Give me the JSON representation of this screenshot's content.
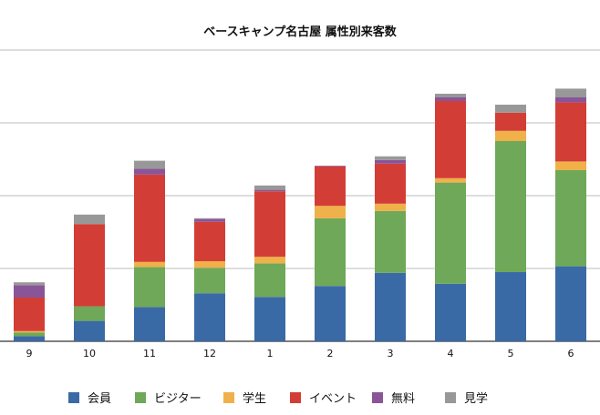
{
  "chart_data": {
    "type": "bar",
    "stacked": true,
    "title": "ベースキャンプ名古屋 属性別来客数",
    "xlabel": "",
    "ylabel": "",
    "categories": [
      "9",
      "10",
      "11",
      "12",
      "1",
      "2",
      "3",
      "4",
      "5",
      "6"
    ],
    "ylim": [
      0,
      400
    ],
    "grid": true,
    "legend": "bottom",
    "series": [
      {
        "name": "会員",
        "color": "#3a6aa6",
        "values": [
          7,
          28,
          47,
          66,
          61,
          76,
          94,
          79,
          95,
          103
        ]
      },
      {
        "name": "ビジター",
        "color": "#6fa858",
        "values": [
          5,
          20,
          55,
          35,
          46,
          93,
          85,
          139,
          180,
          132
        ]
      },
      {
        "name": "学生",
        "color": "#f0b04a",
        "values": [
          2,
          0,
          7,
          9,
          9,
          17,
          10,
          6,
          14,
          12
        ]
      },
      {
        "name": "イベント",
        "color": "#d23e35",
        "values": [
          46,
          113,
          120,
          54,
          90,
          54,
          55,
          106,
          25,
          81
        ]
      },
      {
        "name": "無料",
        "color": "#8a5598",
        "values": [
          17,
          0,
          8,
          4,
          2,
          1,
          5,
          5,
          0,
          7
        ]
      },
      {
        "name": "見学",
        "color": "#989898",
        "values": [
          4,
          13,
          11,
          1,
          6,
          0,
          5,
          5,
          11,
          12
        ]
      }
    ]
  }
}
